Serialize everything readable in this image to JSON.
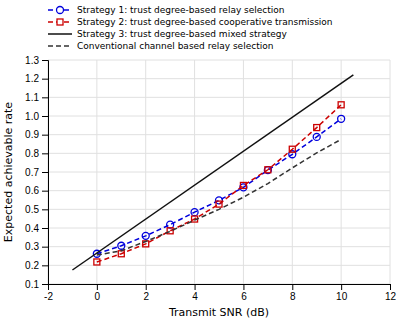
{
  "chart_data": {
    "type": "line",
    "xlabel": "Transmit SNR (dB)",
    "ylabel": "Expected achievable rate",
    "xlim": [
      -2,
      12
    ],
    "ylim": [
      0.1,
      1.3
    ],
    "xticks": [
      -2,
      0,
      2,
      4,
      6,
      8,
      10,
      12
    ],
    "yticks": [
      0.1,
      0.2,
      0.3,
      0.4,
      0.5,
      0.6,
      0.7,
      0.8,
      0.9,
      {
        "value": 1.0,
        "label": "1.0"
      },
      1.1,
      1.2,
      1.3
    ],
    "grid": true,
    "legend": "upper left",
    "series": [
      {
        "name": "Strategy 1: trust degree-based relay selection",
        "color": "#0000dd",
        "marker": "circle",
        "line_style": "dashed",
        "x": [
          0,
          1,
          2,
          3,
          4,
          5,
          6,
          7,
          8,
          9,
          10
        ],
        "values": [
          0.262,
          0.305,
          0.358,
          0.418,
          0.485,
          0.548,
          0.618,
          0.71,
          0.795,
          0.888,
          0.985
        ]
      },
      {
        "name": "Strategy 2: trust degree-based cooperative transmission",
        "color": "#cc0000",
        "marker": "square",
        "line_style": "dashed",
        "x": [
          0,
          1,
          2,
          3,
          4,
          5,
          6,
          7,
          8,
          9,
          10
        ],
        "values": [
          0.218,
          0.262,
          0.315,
          0.385,
          0.448,
          0.528,
          0.628,
          0.712,
          0.822,
          0.938,
          1.06
        ]
      },
      {
        "name": "Strategy 3: trust degree-based mixed strategy",
        "color": "#111111",
        "marker": "none",
        "line_style": "solid",
        "x": [
          -1,
          10.5
        ],
        "values": [
          0.175,
          1.22
        ]
      },
      {
        "name": "Conventional channel based relay selection",
        "color": "#333333",
        "marker": "none",
        "line_style": "dashed",
        "x": [
          0,
          1,
          2,
          3,
          4,
          5,
          6,
          7,
          8,
          9,
          10
        ],
        "values": [
          0.255,
          0.278,
          0.328,
          0.382,
          0.442,
          0.5,
          0.565,
          0.638,
          0.722,
          0.802,
          0.875
        ]
      }
    ]
  }
}
